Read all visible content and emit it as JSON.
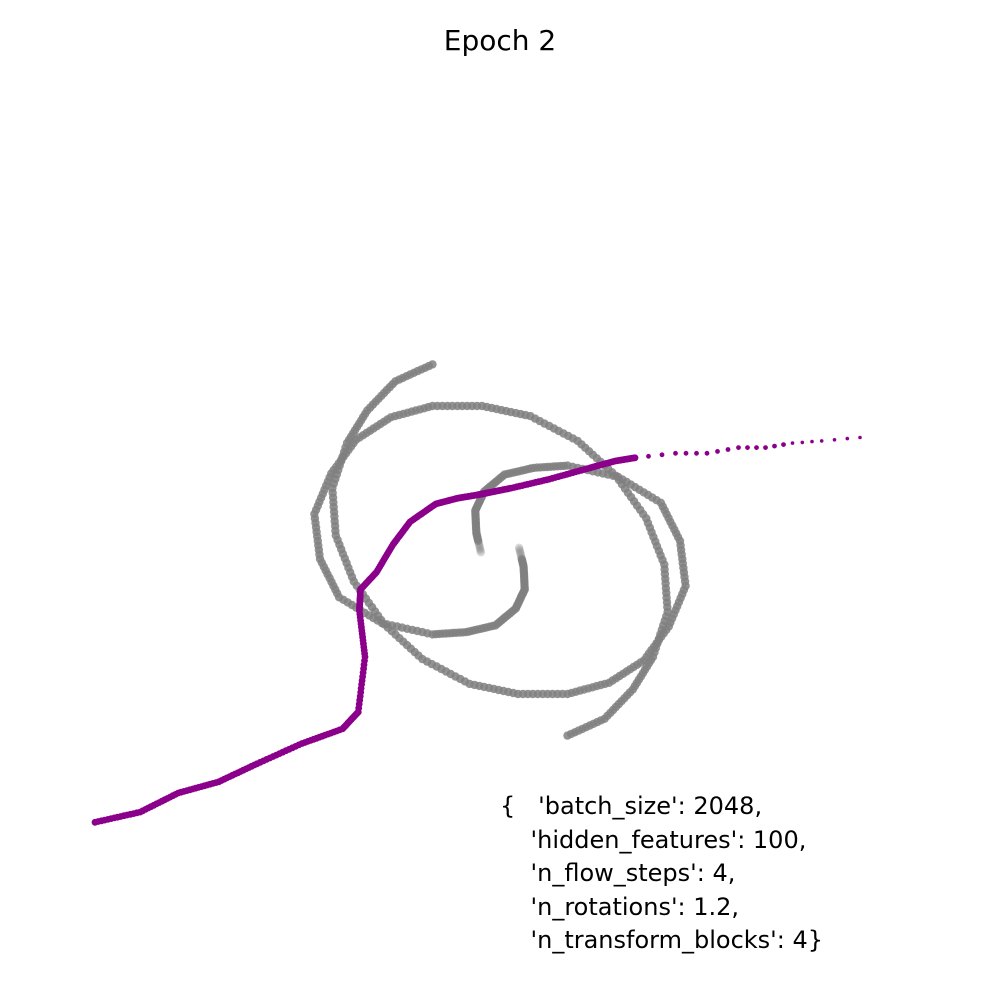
{
  "chart_data": {
    "type": "scatter",
    "title": "Epoch 2",
    "xlabel": "",
    "ylabel": "",
    "axes_visible": false,
    "grid": false,
    "xlim": [
      -4,
      4
    ],
    "ylim": [
      -4,
      4
    ],
    "series": [
      {
        "role": "target",
        "color": "#808080",
        "shape": "two-arm spiral",
        "n_rotations": 1.2,
        "x": [
          0.17,
          0.21,
          0.22,
          0.14,
          -0.04,
          -0.3,
          -0.6,
          -1.05,
          -1.43,
          -1.6,
          -1.65,
          -1.5,
          -1.28,
          -0.97,
          -0.6,
          -0.16,
          0.27,
          0.69,
          1.03,
          1.3,
          1.46,
          1.49,
          1.36,
          1.18,
          0.93,
          0.6,
          -0.17,
          -0.21,
          -0.22,
          -0.14,
          0.04,
          0.3,
          0.6,
          1.05,
          1.43,
          1.6,
          1.65,
          1.5,
          1.28,
          0.97,
          0.6,
          0.16,
          -0.27,
          -0.69,
          -1.03,
          -1.3,
          -1.46,
          -1.49,
          -1.36,
          -1.18,
          -0.93,
          -0.6
        ],
        "y": [
          0.02,
          -0.15,
          -0.35,
          -0.52,
          -0.67,
          -0.73,
          -0.75,
          -0.65,
          -0.42,
          -0.08,
          0.32,
          0.68,
          0.98,
          1.18,
          1.28,
          1.28,
          1.19,
          0.97,
          0.66,
          0.28,
          -0.13,
          -0.55,
          -0.95,
          -1.24,
          -1.5,
          -1.65,
          -0.02,
          0.15,
          0.35,
          0.52,
          0.67,
          0.73,
          0.75,
          0.65,
          0.42,
          0.08,
          -0.32,
          -0.68,
          -0.98,
          -1.18,
          -1.28,
          -1.28,
          -1.19,
          -0.97,
          -0.66,
          -0.28,
          0.13,
          0.55,
          0.95,
          1.24,
          1.5,
          1.65
        ]
      },
      {
        "role": "model-samples",
        "color": "#8b008b",
        "x": [
          -3.6,
          -3.2,
          -2.86,
          -2.5,
          -2.16,
          -1.76,
          -1.4,
          -1.26,
          -1.2,
          -1.25,
          -1.24,
          -1.1,
          -0.95,
          -0.8,
          -0.57,
          -0.38,
          -0.2,
          -0.1,
          0.1,
          0.44,
          0.8,
          1.02,
          1.2,
          1.56,
          1.84,
          2.12,
          2.36,
          2.6,
          2.86,
          3.2
        ],
        "y": [
          -2.42,
          -2.33,
          -2.16,
          -2.06,
          -1.9,
          -1.72,
          -1.59,
          -1.44,
          -0.95,
          -0.54,
          -0.35,
          -0.2,
          0.05,
          0.25,
          0.41,
          0.46,
          0.49,
          0.51,
          0.55,
          0.63,
          0.73,
          0.79,
          0.82,
          0.86,
          0.86,
          0.91,
          0.91,
          0.95,
          0.97,
          1.0
        ]
      }
    ]
  },
  "params": {
    "lines": [
      "{   'batch_size': 2048,",
      "    'hidden_features': 100,",
      "    'n_flow_steps': 4,",
      "    'n_rotations': 1.2,",
      "    'n_transform_blocks': 4}"
    ]
  }
}
